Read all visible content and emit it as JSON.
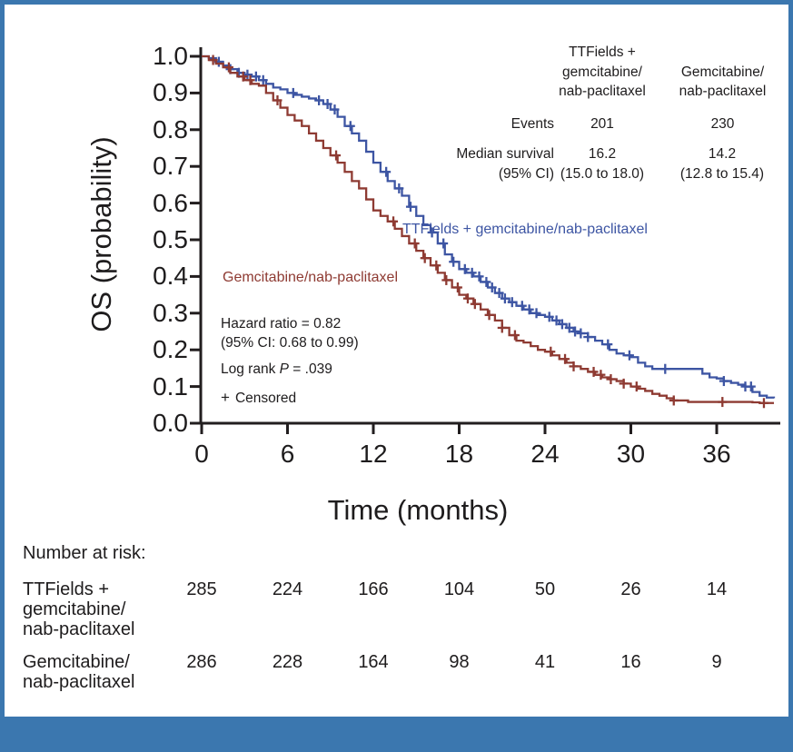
{
  "figure": {
    "background_color": "#ffffff",
    "frame_color": "#3B77AF",
    "axis_color": "#221E1F"
  },
  "chart_data": {
    "type": "line",
    "subtype": "kaplan-meier-step",
    "title": "",
    "xlabel": "Time (months)",
    "ylabel": "OS (probability)",
    "xticks": [
      0,
      6,
      12,
      18,
      24,
      30,
      36
    ],
    "yticks": [
      1.0,
      0.9,
      0.8,
      0.7,
      0.6,
      0.5,
      0.4,
      0.3,
      0.2,
      0.1,
      0.0
    ],
    "xlim": [
      0,
      40.5
    ],
    "ylim": [
      0,
      1.0
    ],
    "grid": false,
    "legend_position": "inline-curve-labels",
    "series": [
      {
        "name": "TTFields + gemcitabine/nab-paclitaxel",
        "color": "#3D55A3",
        "points": [
          [
            0,
            1.0
          ],
          [
            0.5,
            0.995
          ],
          [
            1,
            0.985
          ],
          [
            1.5,
            0.975
          ],
          [
            2,
            0.965
          ],
          [
            2.5,
            0.955
          ],
          [
            3,
            0.95
          ],
          [
            3.5,
            0.945
          ],
          [
            4,
            0.935
          ],
          [
            4.5,
            0.925
          ],
          [
            5,
            0.915
          ],
          [
            5.5,
            0.91
          ],
          [
            6,
            0.9
          ],
          [
            6.5,
            0.895
          ],
          [
            7,
            0.89
          ],
          [
            7.5,
            0.885
          ],
          [
            8,
            0.88
          ],
          [
            8.5,
            0.87
          ],
          [
            9,
            0.855
          ],
          [
            9.5,
            0.835
          ],
          [
            10,
            0.81
          ],
          [
            10.5,
            0.79
          ],
          [
            11,
            0.77
          ],
          [
            11.5,
            0.74
          ],
          [
            12,
            0.71
          ],
          [
            12.5,
            0.685
          ],
          [
            13,
            0.66
          ],
          [
            13.5,
            0.64
          ],
          [
            14,
            0.62
          ],
          [
            14.5,
            0.59
          ],
          [
            15,
            0.565
          ],
          [
            15.5,
            0.54
          ],
          [
            16,
            0.52
          ],
          [
            16.5,
            0.49
          ],
          [
            17,
            0.46
          ],
          [
            17.5,
            0.44
          ],
          [
            18,
            0.42
          ],
          [
            18.5,
            0.41
          ],
          [
            19,
            0.4
          ],
          [
            19.5,
            0.385
          ],
          [
            20,
            0.37
          ],
          [
            20.5,
            0.355
          ],
          [
            21,
            0.34
          ],
          [
            21.5,
            0.33
          ],
          [
            22,
            0.32
          ],
          [
            22.5,
            0.31
          ],
          [
            23,
            0.3
          ],
          [
            23.5,
            0.295
          ],
          [
            24,
            0.29
          ],
          [
            24.5,
            0.28
          ],
          [
            25,
            0.27
          ],
          [
            25.5,
            0.26
          ],
          [
            26,
            0.25
          ],
          [
            26.5,
            0.245
          ],
          [
            27,
            0.235
          ],
          [
            27.5,
            0.225
          ],
          [
            28,
            0.215
          ],
          [
            28.5,
            0.2
          ],
          [
            29,
            0.19
          ],
          [
            29.5,
            0.185
          ],
          [
            30,
            0.18
          ],
          [
            30.5,
            0.165
          ],
          [
            31,
            0.155
          ],
          [
            31.5,
            0.148
          ],
          [
            32.5,
            0.148
          ],
          [
            34,
            0.148
          ],
          [
            34.8,
            0.148
          ],
          [
            35,
            0.135
          ],
          [
            35.5,
            0.125
          ],
          [
            36,
            0.122
          ],
          [
            36.5,
            0.115
          ],
          [
            37,
            0.11
          ],
          [
            37.5,
            0.105
          ],
          [
            38,
            0.1
          ],
          [
            38.5,
            0.085
          ],
          [
            39,
            0.075
          ],
          [
            39.5,
            0.07
          ],
          [
            40,
            0.068
          ]
        ],
        "censor_times": [
          1.2,
          2.0,
          2.6,
          3.2,
          3.8,
          4.3,
          6.4,
          8.2,
          8.8,
          9.3,
          10.4,
          12.9,
          13.8,
          14.6,
          16.1,
          16.9,
          17.6,
          18.4,
          18.9,
          19.4,
          19.9,
          20.3,
          20.8,
          21.2,
          21.7,
          22.4,
          22.9,
          23.4,
          24.3,
          24.8,
          25.2,
          25.7,
          26.1,
          26.5,
          27.0,
          28.4,
          29.9,
          32.4,
          36.5,
          38.0,
          38.4
        ],
        "events": 201,
        "median_survival": 16.2,
        "median_ci": "15.0 to 18.0"
      },
      {
        "name": "Gemcitabine/nab-paclitaxel",
        "color": "#8E3A32",
        "points": [
          [
            0,
            1.0
          ],
          [
            0.5,
            0.99
          ],
          [
            1,
            0.98
          ],
          [
            1.5,
            0.97
          ],
          [
            2,
            0.955
          ],
          [
            2.5,
            0.945
          ],
          [
            3,
            0.935
          ],
          [
            3.5,
            0.925
          ],
          [
            4,
            0.92
          ],
          [
            4.5,
            0.9
          ],
          [
            5,
            0.88
          ],
          [
            5.5,
            0.86
          ],
          [
            6,
            0.84
          ],
          [
            6.5,
            0.825
          ],
          [
            7,
            0.81
          ],
          [
            7.5,
            0.79
          ],
          [
            8,
            0.77
          ],
          [
            8.5,
            0.75
          ],
          [
            9,
            0.73
          ],
          [
            9.5,
            0.71
          ],
          [
            10,
            0.685
          ],
          [
            10.5,
            0.66
          ],
          [
            11,
            0.64
          ],
          [
            11.5,
            0.61
          ],
          [
            12,
            0.58
          ],
          [
            12.5,
            0.565
          ],
          [
            13,
            0.55
          ],
          [
            13.5,
            0.53
          ],
          [
            14,
            0.51
          ],
          [
            14.5,
            0.49
          ],
          [
            15,
            0.47
          ],
          [
            15.5,
            0.45
          ],
          [
            16,
            0.43
          ],
          [
            16.5,
            0.41
          ],
          [
            17,
            0.39
          ],
          [
            17.5,
            0.37
          ],
          [
            18,
            0.35
          ],
          [
            18.5,
            0.34
          ],
          [
            19,
            0.325
          ],
          [
            19.5,
            0.31
          ],
          [
            20,
            0.295
          ],
          [
            20.5,
            0.28
          ],
          [
            21,
            0.26
          ],
          [
            21.5,
            0.24
          ],
          [
            22,
            0.225
          ],
          [
            22.5,
            0.22
          ],
          [
            23,
            0.21
          ],
          [
            23.5,
            0.2
          ],
          [
            24,
            0.195
          ],
          [
            24.5,
            0.185
          ],
          [
            25,
            0.175
          ],
          [
            25.5,
            0.165
          ],
          [
            26,
            0.155
          ],
          [
            26.5,
            0.148
          ],
          [
            27,
            0.14
          ],
          [
            27.5,
            0.132
          ],
          [
            28,
            0.125
          ],
          [
            28.5,
            0.12
          ],
          [
            29,
            0.115
          ],
          [
            29.5,
            0.108
          ],
          [
            30,
            0.1
          ],
          [
            30.5,
            0.094
          ],
          [
            31,
            0.088
          ],
          [
            31.5,
            0.08
          ],
          [
            32,
            0.075
          ],
          [
            32.5,
            0.068
          ],
          [
            33,
            0.062
          ],
          [
            34,
            0.058
          ],
          [
            35.5,
            0.058
          ],
          [
            37,
            0.058
          ],
          [
            38.5,
            0.057
          ],
          [
            39,
            0.055
          ],
          [
            40,
            0.055
          ]
        ],
        "censor_times": [
          0.8,
          1.9,
          2.9,
          3.4,
          5.3,
          9.4,
          13.4,
          14.9,
          15.6,
          16.4,
          17.1,
          17.9,
          18.6,
          19.1,
          20.1,
          21.0,
          21.9,
          24.4,
          25.4,
          26.0,
          27.4,
          27.9,
          28.6,
          29.5,
          30.4,
          33.0,
          36.4,
          39.3
        ],
        "events": 230,
        "median_survival": 14.2,
        "median_ci": "12.8 to 15.4"
      }
    ]
  },
  "inset_table": {
    "col1_header": [
      "TTFields +",
      "gemcitabine/",
      "nab-paclitaxel"
    ],
    "col2_header": [
      "Gemcitabine/",
      "nab-paclitaxel"
    ],
    "events_label": "Events",
    "events_col1": "201",
    "events_col2": "230",
    "median_label_line1": "Median survival",
    "median_label_line2": "(95% CI)",
    "median_col1_line1": "16.2",
    "median_col1_line2": "(15.0 to 18.0)",
    "median_col2_line1": "14.2",
    "median_col2_line2": "(12.8 to 15.4)"
  },
  "annotations": {
    "curve_label_ttfields": "TTFields + gemcitabine/nab-paclitaxel",
    "curve_label_gemcitabine": "Gemcitabine/nab-paclitaxel",
    "hazard_line1": "Hazard ratio = 0.82",
    "hazard_line2": "(95% CI: 0.68 to 0.99)",
    "logrank_prefix": "Log rank ",
    "logrank_p": "P",
    "logrank_suffix": " = .039",
    "censored_plus": "+",
    "censored_label": "Censored"
  },
  "risk_table": {
    "title": "Number at risk:",
    "rows": [
      {
        "label_lines": [
          "TTFields +",
          "gemcitabine/",
          "nab-paclitaxel"
        ],
        "values": [
          "285",
          "224",
          "166",
          "104",
          "50",
          "26",
          "14"
        ]
      },
      {
        "label_lines": [
          "Gemcitabine/",
          "nab-paclitaxel"
        ],
        "values": [
          "286",
          "228",
          "164",
          "98",
          "41",
          "16",
          "9"
        ]
      }
    ]
  }
}
